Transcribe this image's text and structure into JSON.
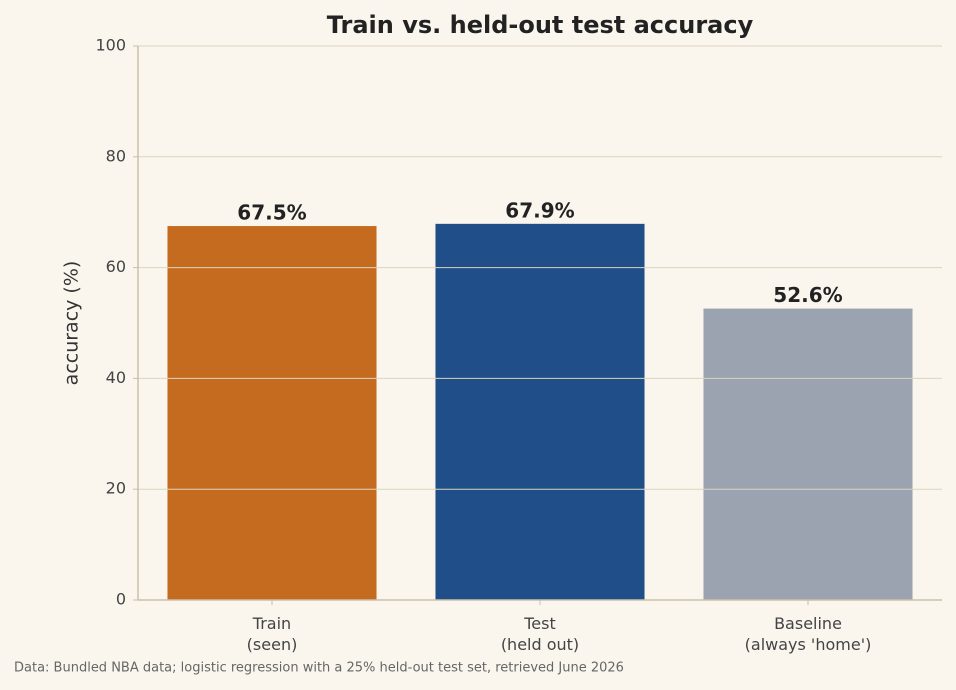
{
  "chart_data": {
    "type": "bar",
    "title": "Train vs. held-out test accuracy",
    "y_label": "accuracy (%)",
    "categories": [
      "Train\n(seen)",
      "Test\n(held out)",
      "Baseline\n(always 'home')"
    ],
    "values": [
      67.5,
      67.9,
      52.6
    ],
    "value_labels": [
      "67.5%",
      "67.9%",
      "52.6%"
    ],
    "colors": [
      "#c56b1f",
      "#1f4e88",
      "#9aa3af"
    ],
    "ylim": [
      0,
      100
    ],
    "yticks": [
      0,
      20,
      40,
      60,
      80,
      100
    ],
    "grid": true,
    "footnote": "Data: Bundled NBA data; logistic regression with a 25% held-out test set, retrieved June 2026"
  }
}
